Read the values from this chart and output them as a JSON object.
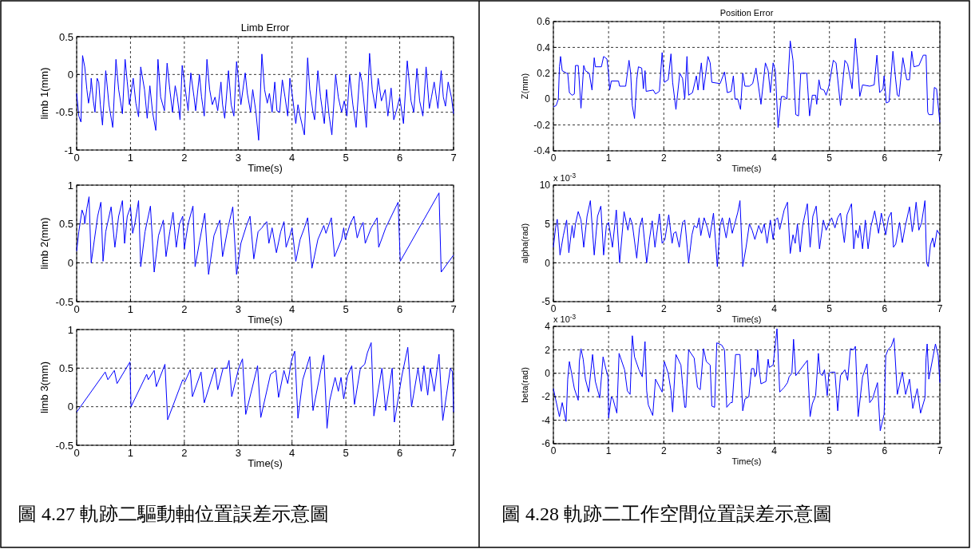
{
  "chart_data": [
    {
      "type": "line",
      "title": "Limb Error",
      "xlabel": "Time(s)",
      "ylabel": "limb 1(mm)",
      "xlim": [
        0,
        7
      ],
      "xticks": [
        0,
        1,
        2,
        3,
        4,
        5,
        6,
        7
      ],
      "ylim": [
        -1,
        0.5
      ],
      "yticks": [
        -1,
        -0.5,
        0,
        0.5
      ],
      "grid": true,
      "series": [
        {
          "color": "#0000ff",
          "x": [
            0,
            0.04,
            0.08,
            0.11,
            0.15,
            0.19,
            0.22,
            0.26,
            0.27,
            0.31,
            0.34,
            0.38,
            0.41,
            0.44,
            0.48,
            0.54,
            0.6,
            0.67,
            0.73,
            0.78,
            0.85,
            0.9,
            0.94,
            0.98,
            1.05,
            1.1,
            1.15,
            1.19,
            1.26,
            1.31,
            1.36,
            1.41,
            1.47,
            1.51,
            1.56,
            1.63,
            1.68,
            1.73,
            1.78,
            1.83,
            1.87,
            1.92,
            1.96,
            2.0,
            2.07,
            2.12,
            2.18,
            2.21,
            2.28,
            2.32,
            2.37,
            2.42,
            2.47,
            2.52,
            2.57,
            2.62,
            2.68,
            2.71,
            2.75,
            2.82,
            2.87,
            2.92,
            2.97,
            3.01,
            3.05,
            3.13,
            3.17,
            3.23,
            3.27,
            3.33,
            3.38,
            3.44,
            3.49,
            3.54,
            3.58,
            3.63,
            3.68,
            3.72,
            3.77,
            3.82,
            3.87,
            3.92,
            3.96,
            4.01,
            4.07,
            4.11,
            4.15,
            4.23,
            4.29,
            4.33,
            4.39,
            4.42,
            4.48,
            4.53,
            4.6,
            4.64,
            4.69,
            4.74,
            4.81,
            4.86,
            4.92,
            4.97,
            5.02,
            5.07,
            5.13,
            5.19,
            5.26,
            5.3,
            5.38,
            5.44,
            5.49,
            5.55,
            5.6,
            5.66,
            5.73,
            5.78,
            5.84,
            5.89,
            5.95,
            6.0,
            6.07,
            6.14,
            6.21,
            6.26,
            6.32,
            6.37,
            6.43,
            6.49,
            6.55,
            6.59,
            6.64,
            6.71,
            6.77,
            6.81,
            6.85,
            6.9,
            6.96,
            7
          ],
          "values": [
            -0.25,
            -0.55,
            -0.63,
            0.25,
            0.1,
            -0.2,
            -0.38,
            -0.2,
            -0.05,
            -0.35,
            -0.5,
            -0.05,
            -0.1,
            -0.4,
            -0.67,
            0.05,
            -0.4,
            -0.7,
            0.2,
            -0.2,
            -0.52,
            0.2,
            -0.1,
            -0.4,
            -0.05,
            -0.38,
            -0.56,
            0.1,
            -0.2,
            -0.58,
            -0.15,
            -0.5,
            -0.74,
            0.2,
            -0.3,
            -0.48,
            0.15,
            -0.2,
            -0.5,
            -0.15,
            -0.3,
            -0.6,
            0.12,
            -0.1,
            -0.48,
            0.02,
            -0.3,
            -0.48,
            0,
            -0.3,
            -0.55,
            0.2,
            -0.2,
            -0.4,
            -0.3,
            -0.48,
            -0.1,
            -0.4,
            -0.58,
            0.05,
            -0.4,
            -0.55,
            0.17,
            -0.1,
            -0.4,
            0.02,
            -0.25,
            -0.5,
            -0.2,
            -0.5,
            -0.87,
            0.27,
            -0.2,
            -0.38,
            -0.25,
            -0.5,
            -0.1,
            -0.48,
            -0.5,
            -0.07,
            -0.3,
            -0.55,
            -0.05,
            -0.3,
            -0.65,
            -0.4,
            -0.55,
            -0.8,
            0.22,
            -0.2,
            -0.5,
            -0.6,
            0.05,
            -0.3,
            -0.65,
            -0.2,
            -0.55,
            -0.8,
            0,
            -0.3,
            -0.5,
            -0.35,
            -0.55,
            0,
            -0.4,
            -0.7,
            0.03,
            -0.1,
            -0.7,
            0.28,
            -0.2,
            -0.45,
            -0.05,
            -0.35,
            -0.2,
            -0.55,
            -0.18,
            -0.6,
            -0.45,
            -0.3,
            -0.65,
            0.18,
            -0.35,
            -0.5,
            0.08,
            -0.35,
            -0.55,
            0.1,
            -0.45,
            -0.3,
            -0.1,
            -0.45,
            0.05,
            -0.3,
            -0.42,
            -0.1,
            -0.3,
            -0.52
          ]
        }
      ]
    },
    {
      "type": "line",
      "xlabel": "Time(s)",
      "ylabel": "limb 2(mm)",
      "xlim": [
        0,
        7
      ],
      "xticks": [
        0,
        1,
        2,
        3,
        4,
        5,
        6,
        7
      ],
      "ylim": [
        -0.5,
        1
      ],
      "yticks": [
        -0.5,
        0,
        0.5,
        1
      ],
      "grid": true,
      "series": [
        {
          "color": "#0000ff",
          "x": [
            0,
            0.04,
            0.1,
            0.14,
            0.15,
            0.19,
            0.23,
            0.27,
            0.33,
            0.39,
            0.45,
            0.49,
            0.54,
            0.64,
            0.71,
            0.78,
            0.85,
            0.89,
            0.94,
            1.0,
            1.04,
            1.08,
            1.15,
            1.19,
            1.27,
            1.37,
            1.44,
            1.52,
            1.61,
            1.66,
            1.73,
            1.79,
            1.85,
            1.91,
            1.97,
            2.0,
            2.07,
            2.16,
            2.2,
            2.29,
            2.38,
            2.45,
            2.55,
            2.66,
            2.71,
            2.81,
            2.9,
            2.97,
            3.05,
            3.15,
            3.22,
            3.29,
            3.37,
            3.44,
            3.49,
            3.53,
            3.57,
            3.63,
            3.71,
            3.79,
            3.85,
            3.89,
            3.96,
            4.0,
            4.07,
            4.15,
            4.23,
            4.29,
            4.37,
            4.48,
            4.59,
            4.63,
            4.73,
            4.79,
            4.92,
            4.96,
            4.99,
            5.08,
            5.15,
            5.21,
            5.27,
            5.32,
            5.36,
            5.47,
            5.58,
            5.61,
            5.74,
            5.97,
            6.01,
            6.73,
            6.77,
            7
          ],
          "values": [
            0.15,
            0.4,
            0.68,
            0.6,
            0.5,
            0.7,
            0.85,
            0.0,
            0.3,
            0.6,
            0.78,
            0.02,
            0.4,
            0.72,
            0.2,
            0.6,
            0.8,
            0.25,
            0.6,
            0.72,
            0.38,
            0.5,
            0.8,
            -0.05,
            0.4,
            0.73,
            -0.12,
            0.35,
            0.55,
            0.08,
            0.4,
            0.65,
            0.2,
            0.5,
            0.6,
            0.18,
            0.5,
            0.73,
            -0.05,
            0.3,
            0.64,
            -0.15,
            0.35,
            0.55,
            0.08,
            0.45,
            0.72,
            -0.15,
            0.25,
            0.47,
            0.6,
            0.05,
            0.4,
            0.45,
            0.5,
            0.53,
            0.25,
            0.45,
            0.13,
            0.4,
            0.53,
            0.2,
            0.35,
            0.45,
            0.02,
            0.3,
            0.45,
            0.58,
            -0.07,
            0.3,
            0.48,
            0.38,
            0.58,
            0.08,
            0.3,
            0.45,
            0.3,
            0.5,
            0.6,
            0.32,
            0.45,
            0.52,
            0.25,
            0.45,
            0.58,
            0.2,
            0.45,
            0.78,
            0.02,
            0.9,
            -0.12,
            0.1
          ]
        }
      ]
    },
    {
      "type": "line",
      "xlabel": "Time(s)",
      "ylabel": "limb 3(mm)",
      "xlim": [
        0,
        7
      ],
      "xticks": [
        0,
        1,
        2,
        3,
        4,
        5,
        6,
        7
      ],
      "ylim": [
        -0.5,
        1
      ],
      "yticks": [
        -0.5,
        0,
        0.5,
        1
      ],
      "grid": true,
      "annotations": [
        "圖 4.27  軌跡二驅動軸位置誤差示意圖"
      ],
      "series": [
        {
          "color": "#0000ff",
          "x": [
            0,
            0.53,
            0.58,
            0.7,
            0.75,
            0.99,
            1.01,
            1.3,
            1.33,
            1.44,
            1.48,
            1.64,
            1.69,
            1.97,
            2.01,
            2.11,
            2.15,
            2.31,
            2.37,
            2.57,
            2.62,
            2.72,
            2.79,
            2.83,
            2.88,
            3.01,
            3.08,
            3.14,
            3.36,
            3.42,
            3.6,
            3.7,
            3.75,
            3.85,
            3.92,
            3.99,
            4.05,
            4.11,
            4.2,
            4.33,
            4.39,
            4.59,
            4.65,
            4.7,
            4.8,
            4.86,
            4.91,
            4.96,
            5.03,
            5.11,
            5.16,
            5.27,
            5.35,
            5.4,
            5.47,
            5.52,
            5.67,
            5.74,
            5.86,
            5.9,
            6.04,
            6.15,
            6.22,
            6.34,
            6.4,
            6.45,
            6.52,
            6.57,
            6.64,
            6.73,
            6.8,
            6.94,
            6.98,
            7
          ],
          "values": [
            -0.07,
            0.45,
            0.35,
            0.47,
            0.3,
            0.58,
            0,
            0.42,
            0.35,
            0.47,
            0.26,
            0.55,
            -0.17,
            0.35,
            0.32,
            0.48,
            0.13,
            0.45,
            0.05,
            0.5,
            0.22,
            0.5,
            0.5,
            0.6,
            0.13,
            0.5,
            0.62,
            -0.1,
            0.53,
            -0.14,
            0.42,
            0.47,
            0.12,
            0.47,
            0.3,
            0.6,
            0.72,
            -0.15,
            0.35,
            0.65,
            -0.05,
            0.67,
            -0.28,
            0.08,
            0.38,
            0.2,
            0.38,
            0.1,
            0.4,
            0.53,
            0.03,
            0.5,
            0.55,
            0.7,
            0.83,
            -0.12,
            0.5,
            -0.05,
            0.5,
            -0.2,
            0.4,
            0.77,
            0.0,
            0.5,
            0.2,
            0.53,
            0.15,
            0.5,
            0.2,
            0.68,
            -0.18,
            0.5,
            0.45,
            -0.07
          ]
        }
      ]
    },
    {
      "type": "line",
      "title": "Position Error",
      "xlabel": "Time(s)",
      "ylabel": "Z(mm)",
      "xlim": [
        0,
        7
      ],
      "xticks": [
        0,
        1,
        2,
        3,
        4,
        5,
        6,
        7
      ],
      "ylim": [
        -0.4,
        0.6
      ],
      "yticks": [
        -0.4,
        -0.2,
        0,
        0.2,
        0.4,
        0.6
      ],
      "grid": true,
      "series": [
        {
          "color": "#0000ff",
          "x": [
            0,
            0.05,
            0.09,
            0.11,
            0.13,
            0.16,
            0.24,
            0.26,
            0.29,
            0.34,
            0.38,
            0.4,
            0.45,
            0.46,
            0.5,
            0.55,
            0.58,
            0.65,
            0.7,
            0.74,
            0.76,
            0.87,
            0.91,
            0.97,
            1.0,
            1.02,
            1.05,
            1.18,
            1.2,
            1.31,
            1.37,
            1.4,
            1.43,
            1.47,
            1.51,
            1.54,
            1.6,
            1.63,
            1.66,
            1.68,
            1.81,
            1.85,
            1.92,
            1.97,
            2.01,
            2.08,
            2.13,
            2.16,
            2.22,
            2.29,
            2.34,
            2.38,
            2.42,
            2.45,
            2.52,
            2.59,
            2.62,
            2.68,
            2.72,
            2.8,
            2.84,
            2.87,
            3.02,
            3.1,
            3.15,
            3.22,
            3.26,
            3.29,
            3.34,
            3.39,
            3.43,
            3.47,
            3.55,
            3.61,
            3.67,
            3.76,
            3.84,
            3.89,
            3.93,
            3.98,
            4.02,
            4.07,
            4.13,
            4.18,
            4.23,
            4.29,
            4.34,
            4.39,
            4.44,
            4.48,
            4.59,
            4.64,
            4.69,
            4.75,
            4.77,
            4.81,
            4.84,
            4.9,
            4.94,
            4.99,
            5.07,
            5.12,
            5.2,
            5.28,
            5.33,
            5.41,
            5.47,
            5.52,
            5.55,
            5.6,
            5.73,
            5.81,
            5.86,
            5.91,
            5.97,
            5.99,
            6.03,
            6.08,
            6.15,
            6.2,
            6.23,
            6.26,
            6.33,
            6.4,
            6.45,
            6.49,
            6.53,
            6.62,
            6.7,
            6.75,
            6.78,
            6.8,
            6.87,
            6.9,
            6.94,
            7
          ],
          "values": [
            -0.06,
            -0.05,
            0.0,
            0.25,
            0.33,
            0.22,
            0.2,
            0.2,
            0.05,
            0.03,
            0.04,
            0.26,
            0.26,
            0.2,
            -0.07,
            0.26,
            0.22,
            0.2,
            0.07,
            0.32,
            0.25,
            0.25,
            0.33,
            0.31,
            0.2,
            0.07,
            0.14,
            0.14,
            0.1,
            0.1,
            0.3,
            0.2,
            -0.05,
            -0.15,
            0.15,
            0.25,
            0.24,
            0.08,
            0.22,
            0.06,
            0.07,
            0.04,
            0.06,
            0.36,
            0.13,
            0.15,
            0.35,
            0.13,
            -0.08,
            0.2,
            0.16,
            0.0,
            0.33,
            0.03,
            0.05,
            0.18,
            0.07,
            0.28,
            0.07,
            0.33,
            0.28,
            0.13,
            0.12,
            0.21,
            0.05,
            0.06,
            0.18,
            0.0,
            0.0,
            -0.08,
            0.2,
            0.1,
            0.1,
            0.12,
            0.24,
            -0.04,
            0.28,
            0.22,
            0.05,
            0.28,
            0.22,
            -0.22,
            0.02,
            0.02,
            0.0,
            0.45,
            0.3,
            -0.12,
            -0.13,
            0.2,
            0.2,
            -0.13,
            0.03,
            0.03,
            -0.04,
            0.15,
            0.08,
            0.07,
            0.03,
            0.1,
            0.3,
            0.28,
            -0.05,
            0.3,
            0.27,
            0.08,
            0.47,
            0.22,
            0.02,
            0.11,
            0.1,
            0.11,
            0.34,
            0.05,
            0.08,
            0.18,
            -0.03,
            -0.02,
            0.37,
            0.15,
            0.03,
            0.02,
            0.32,
            0.15,
            0.15,
            0.37,
            0.25,
            0.26,
            0.34,
            0.34,
            -0.1,
            -0.12,
            -0.12,
            0.09,
            0.08,
            -0.18
          ]
        }
      ]
    },
    {
      "type": "line",
      "xlabel": "Time(s)",
      "ylabel": "alpha(rad)",
      "xlim": [
        0,
        7
      ],
      "xticks": [
        0,
        1,
        2,
        3,
        4,
        5,
        6,
        7
      ],
      "ylim": [
        -5,
        10
      ],
      "yticks": [
        -5,
        0,
        5,
        10
      ],
      "grid": true,
      "annotations": [
        "x 10$^{-3}$"
      ],
      "series": [
        {
          "color": "#0000ff",
          "x": [
            0,
            0.04,
            0.07,
            0.09,
            0.12,
            0.18,
            0.24,
            0.28,
            0.34,
            0.37,
            0.4,
            0.45,
            0.5,
            0.55,
            0.61,
            0.67,
            0.74,
            0.8,
            0.86,
            0.91,
            0.96,
            1.0,
            1.07,
            1.14,
            1.2,
            1.28,
            1.35,
            1.39,
            1.43,
            1.51,
            1.56,
            1.61,
            1.69,
            1.74,
            1.79,
            1.84,
            1.92,
            1.97,
            2.02,
            2.09,
            2.15,
            2.18,
            2.22,
            2.28,
            2.34,
            2.38,
            2.45,
            2.51,
            2.55,
            2.6,
            2.64,
            2.67,
            2.73,
            2.79,
            2.83,
            2.9,
            2.94,
            2.97,
            3.02,
            3.06,
            3.13,
            3.19,
            3.24,
            3.34,
            3.38,
            3.43,
            3.49,
            3.55,
            3.6,
            3.65,
            3.72,
            3.77,
            3.82,
            3.87,
            3.93,
            3.98,
            4.02,
            4.06,
            4.1,
            4.18,
            4.24,
            4.29,
            4.34,
            4.38,
            4.42,
            4.47,
            4.52,
            4.6,
            4.65,
            4.7,
            4.76,
            4.82,
            4.89,
            4.94,
            5.0,
            5.04,
            5.1,
            5.15,
            5.2,
            5.27,
            5.32,
            5.4,
            5.44,
            5.48,
            5.52,
            5.55,
            5.6,
            5.65,
            5.7,
            5.75,
            5.82,
            5.89,
            5.94,
            5.97,
            6.02,
            6.07,
            6.12,
            6.16,
            6.2,
            6.27,
            6.32,
            6.37,
            6.45,
            6.5,
            6.53,
            6.57,
            6.62,
            6.67,
            6.73,
            6.76,
            6.79,
            6.83,
            6.87,
            6.9,
            6.95,
            7
          ],
          "values": [
            2,
            4.5,
            5.6,
            4,
            1,
            3.5,
            5.5,
            1.3,
            4.8,
            3.2,
            5,
            6.6,
            5.5,
            2,
            6,
            8,
            1,
            6,
            7.3,
            1,
            4.8,
            5.2,
            2,
            6.8,
            0,
            6.6,
            4.2,
            5.8,
            5,
            0.6,
            4.5,
            5.8,
            0,
            3,
            5.4,
            2,
            6.3,
            2.5,
            3,
            6.2,
            2.5,
            3.8,
            4,
            2,
            5.2,
            5.5,
            0,
            3.6,
            4.8,
            4.5,
            5.8,
            3.5,
            5.8,
            4.5,
            3.2,
            6.4,
            2.5,
            -0.5,
            4.8,
            5.8,
            3.2,
            5.8,
            3.8,
            6.5,
            8,
            -0.5,
            2,
            5,
            4.2,
            3,
            4.8,
            3.8,
            5,
            2.5,
            5.5,
            3,
            5.5,
            5.8,
            4.3,
            6.8,
            7.8,
            1.2,
            3.6,
            2.5,
            5,
            1.4,
            5,
            7.6,
            2,
            6,
            7.3,
            1.8,
            5.5,
            4.2,
            5.2,
            5.8,
            4.5,
            5.8,
            6.4,
            2.6,
            6.2,
            7.6,
            1.8,
            4.2,
            3.2,
            4.8,
            1.8,
            5.5,
            1.8,
            4.6,
            6.7,
            3.8,
            6.4,
            5.3,
            3.6,
            5.8,
            6.5,
            2,
            2.4,
            5.2,
            2.6,
            4.6,
            7.2,
            4,
            5.3,
            7.8,
            4.2,
            5.2,
            8,
            0,
            -0.5,
            2.3,
            3.2,
            2,
            4.2,
            3.6
          ]
        }
      ]
    },
    {
      "type": "line",
      "xlabel": "Time(s)",
      "ylabel": "beta(rad)",
      "xlim": [
        0,
        7
      ],
      "xticks": [
        0,
        1,
        2,
        3,
        4,
        5,
        6,
        7
      ],
      "ylim": [
        -6,
        4
      ],
      "yticks": [
        -6,
        -4,
        -2,
        0,
        2,
        4
      ],
      "grid": true,
      "annotations": [
        "x 10$^{-3}$",
        "圖 4.28  軌跡二工作空間位置誤差示意圖"
      ],
      "series": [
        {
          "color": "#0000ff",
          "x": [
            0,
            0.04,
            0.11,
            0.16,
            0.23,
            0.26,
            0.29,
            0.33,
            0.38,
            0.45,
            0.47,
            0.5,
            0.54,
            0.58,
            0.64,
            0.71,
            0.76,
            0.84,
            0.9,
            0.96,
            0.99,
            1.0,
            1.05,
            1.08,
            1.15,
            1.19,
            1.29,
            1.34,
            1.39,
            1.43,
            1.47,
            1.55,
            1.61,
            1.66,
            1.69,
            1.72,
            1.8,
            1.85,
            1.97,
            2.01,
            2.08,
            2.13,
            2.16,
            2.22,
            2.31,
            2.34,
            2.38,
            2.4,
            2.45,
            2.55,
            2.61,
            2.66,
            2.72,
            2.77,
            2.84,
            2.87,
            2.92,
            2.96,
            3.05,
            3.1,
            3.14,
            3.21,
            3.24,
            3.3,
            3.38,
            3.43,
            3.47,
            3.54,
            3.59,
            3.63,
            3.65,
            3.68,
            3.7,
            3.73,
            3.76,
            3.85,
            3.89,
            3.91,
            3.98,
            4.01,
            4.05,
            4.1,
            4.18,
            4.24,
            4.27,
            4.32,
            4.35,
            4.39,
            4.6,
            4.65,
            4.69,
            4.75,
            4.8,
            4.83,
            4.87,
            4.91,
            4.96,
            4.99,
            5.04,
            5.1,
            5.15,
            5.2,
            5.28,
            5.33,
            5.38,
            5.44,
            5.47,
            5.52,
            5.6,
            5.68,
            5.73,
            5.78,
            5.87,
            5.92,
            5.99,
            6.02,
            6.06,
            6.12,
            6.17,
            6.23,
            6.32,
            6.38,
            6.45,
            6.51,
            6.59,
            6.65,
            6.73,
            6.75,
            6.77,
            6.8,
            6.86,
            6.92,
            6.97,
            7
          ],
          "values": [
            -1.3,
            -2.2,
            -3.7,
            -2.5,
            -4.1,
            -0.5,
            1,
            0,
            -1.3,
            -2.3,
            1,
            2.1,
            1.2,
            -0.5,
            -1.6,
            1.6,
            -0.7,
            -2.1,
            1.4,
            0.2,
            -0.3,
            -3.8,
            -2,
            -2.2,
            -3.4,
            1.7,
            0.3,
            -1.5,
            -1.8,
            3.2,
            1.4,
            0.3,
            -0.3,
            2.7,
            -1.5,
            -2.7,
            -3.6,
            -0.5,
            -1.6,
            1,
            0,
            -1.5,
            -3.3,
            1.6,
            0.7,
            -1,
            -2.9,
            -2.9,
            2,
            1.3,
            -1.2,
            -1.4,
            2.1,
            1,
            0.7,
            -2.8,
            -2.9,
            2.6,
            2.4,
            2,
            -2.9,
            -2.5,
            -2.5,
            1.6,
            1.6,
            -3.2,
            -2.2,
            -2,
            0.4,
            0.4,
            -0.3,
            0,
            2,
            0.2,
            -0.9,
            -0.7,
            1.2,
            0.5,
            0.7,
            2,
            3.8,
            -1.6,
            -1.2,
            -0.8,
            -0.3,
            0,
            2.9,
            -0.2,
            1.1,
            -3.7,
            -2.6,
            -1.9,
            1.7,
            0,
            -0.2,
            0.3,
            -1.9,
            0,
            0.1,
            0.1,
            -3.2,
            -0.2,
            0.3,
            -0.6,
            2.1,
            2,
            2.3,
            -3.7,
            -0.3,
            0.8,
            -2.5,
            -2.2,
            -0.8,
            -4.9,
            -3.5,
            1.5,
            2,
            2.3,
            3,
            -1.8,
            0.1,
            -1.8,
            -0.5,
            -3,
            -1.3,
            -3.4,
            -2.1,
            1.3,
            2.5,
            -0.5,
            1,
            2.5,
            1.5,
            -0.8
          ]
        }
      ]
    }
  ]
}
